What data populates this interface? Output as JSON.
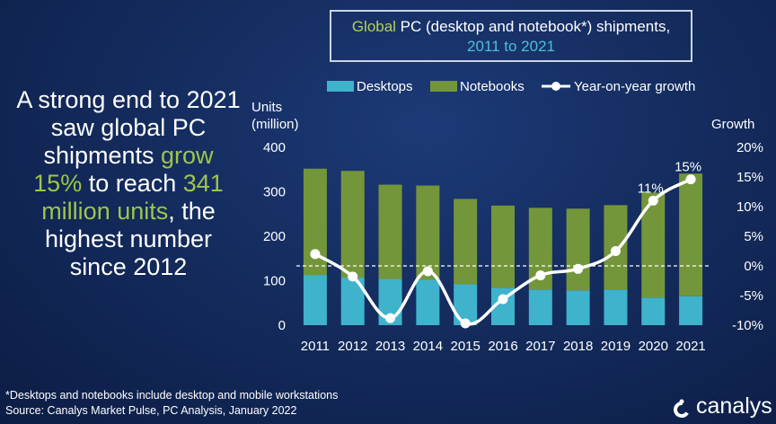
{
  "headline": {
    "p1": "A strong end to 2021 saw global PC shipments ",
    "grow": "grow",
    "p2": " ",
    "pct": "15%",
    "p3": " to reach ",
    "units": "341 million units",
    "p4": ", the highest number since 2012"
  },
  "title": {
    "global": "Global",
    "rest": " PC (desktop and notebook*) shipments,",
    "years": "2011 to 2021"
  },
  "legend": {
    "desktops": "Desktops",
    "notebooks": "Notebooks",
    "growth": "Year-on-year growth"
  },
  "colors": {
    "desktops": "#3fb2cc",
    "notebooks": "#74963a",
    "line": "#ffffff",
    "accent": "#9dc64a"
  },
  "footnote": {
    "line1": "*Desktops and notebooks include desktop and mobile workstations",
    "line2": "Source: Canalys Market Pulse, PC Analysis, January 2022"
  },
  "logo": {
    "name": "canalys",
    "icon": "canalys-logo-icon"
  },
  "chart_data": {
    "type": "bar",
    "stacked": true,
    "categories": [
      "2011",
      "2012",
      "2013",
      "2014",
      "2015",
      "2016",
      "2017",
      "2018",
      "2019",
      "2020",
      "2021"
    ],
    "series": [
      {
        "name": "Desktops",
        "values": [
          113,
          107,
          104,
          102,
          92,
          84,
          80,
          78,
          80,
          62,
          65
        ]
      },
      {
        "name": "Notebooks",
        "values": [
          239,
          240,
          212,
          212,
          192,
          185,
          184,
          184,
          190,
          236,
          276
        ]
      }
    ],
    "line_series": {
      "name": "Year-on-year growth",
      "values": [
        2.0,
        -1.8,
        -8.8,
        -0.9,
        -9.7,
        -5.6,
        -1.6,
        -0.5,
        2.5,
        11.0,
        14.6
      ],
      "labels": [
        {
          "index": 9,
          "text": "11%"
        },
        {
          "index": 10,
          "text": "15%"
        }
      ]
    },
    "ylabel": "Units\n(million)",
    "y2label": "Growth",
    "ylim": [
      0,
      400
    ],
    "yticks": [
      "0",
      "100",
      "200",
      "300",
      "400"
    ],
    "y2lim": [
      -10,
      20
    ],
    "y2ticks": [
      "-10%",
      "-5%",
      "0%",
      "5%",
      "10%",
      "15%",
      "20%"
    ],
    "zero_growth_reference": "dashed line",
    "xlabel": ""
  }
}
